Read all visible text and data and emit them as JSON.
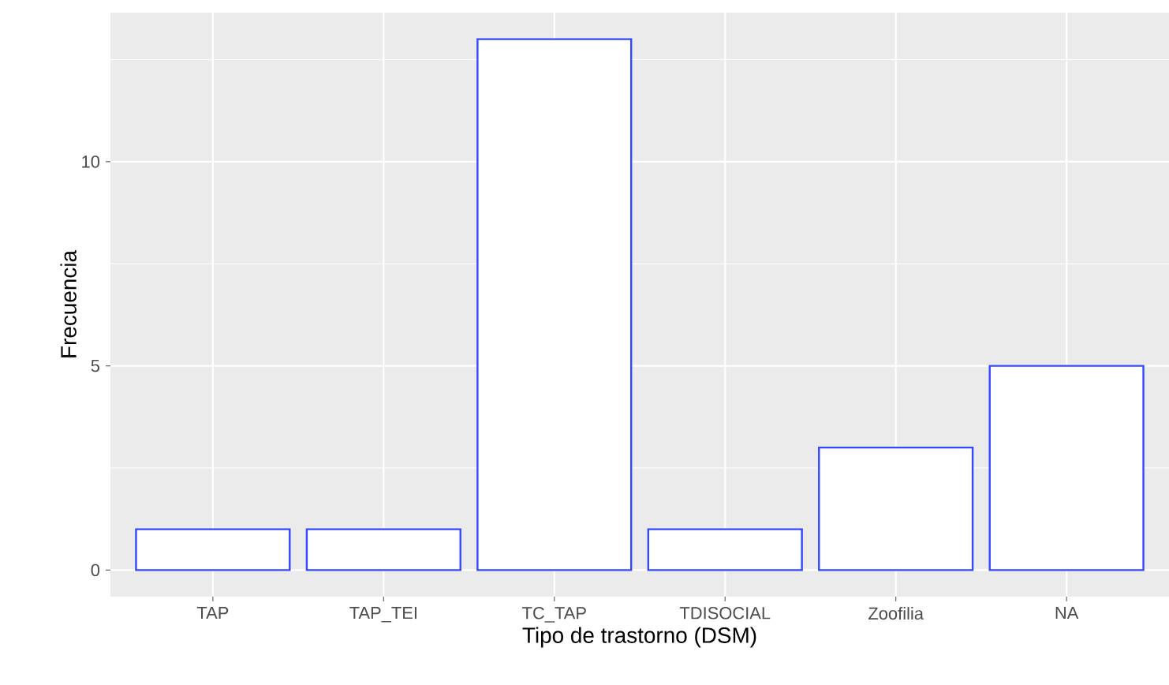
{
  "chart_data": {
    "type": "bar",
    "xlabel": "Tipo de trastorno (DSM)",
    "ylabel": "Frecuencia",
    "categories": [
      "TAP",
      "TAP_TEI",
      "TC_TAP",
      "TDISOCIAL",
      "Zoofilia",
      "NA"
    ],
    "values": [
      1,
      1,
      13,
      1,
      3,
      5
    ],
    "color": "#3347ff",
    "ylim": [
      -0.65,
      13.65
    ],
    "yticks": [
      0,
      5,
      10
    ],
    "grid": true
  }
}
